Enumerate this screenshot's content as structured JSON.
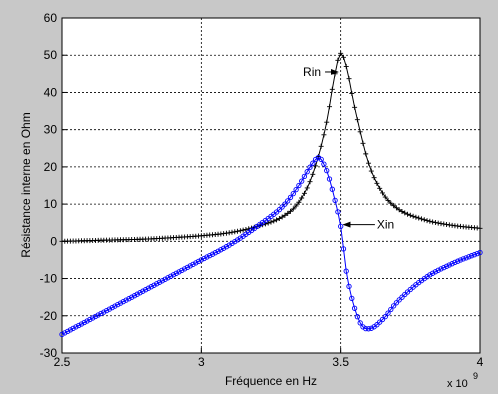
{
  "chart_data": {
    "type": "line",
    "title": "",
    "xlabel": "Fréquence en Hz",
    "ylabel": "Résistance interne en Ohm",
    "x_multiplier_label": "x 10",
    "x_multiplier_exp": "9",
    "xlim": [
      2.5,
      4.0
    ],
    "ylim": [
      -30,
      60
    ],
    "xticks": [
      2.5,
      3,
      3.5,
      4
    ],
    "xtick_labels": [
      "2.5",
      "3",
      "3.5",
      "4"
    ],
    "yticks": [
      -30,
      -20,
      -10,
      0,
      10,
      20,
      30,
      40,
      50,
      60
    ],
    "ytick_labels": [
      "-30",
      "-20",
      "-10",
      "0",
      "10",
      "20",
      "30",
      "40",
      "50",
      "60"
    ],
    "grid": true,
    "series": [
      {
        "name": "Rin",
        "color": "#000000",
        "marker": "plus",
        "x": [
          2.5,
          2.6,
          2.7,
          2.8,
          2.9,
          3.0,
          3.1,
          3.2,
          3.3,
          3.35,
          3.4,
          3.45,
          3.48,
          3.5,
          3.52,
          3.55,
          3.6,
          3.65,
          3.7,
          3.8,
          3.9,
          4.0
        ],
        "y": [
          0,
          0.2,
          0.4,
          0.6,
          1.0,
          1.5,
          2.3,
          4.0,
          7.0,
          10.5,
          18.0,
          32.0,
          45.0,
          50.5,
          47.0,
          36.0,
          21.0,
          13.0,
          9.0,
          5.8,
          4.3,
          3.5
        ]
      },
      {
        "name": "Xin",
        "color": "#0000ff",
        "marker": "circle",
        "x": [
          2.5,
          2.6,
          2.7,
          2.8,
          2.9,
          3.0,
          3.1,
          3.2,
          3.3,
          3.35,
          3.4,
          3.42,
          3.45,
          3.48,
          3.5,
          3.52,
          3.55,
          3.58,
          3.6,
          3.65,
          3.7,
          3.8,
          3.9,
          4.0
        ],
        "y": [
          -25,
          -21,
          -17,
          -13,
          -9,
          -5,
          -1,
          4,
          10,
          15,
          21,
          22.5,
          19,
          11,
          4,
          -8,
          -18,
          -23,
          -23.5,
          -21,
          -16.5,
          -10,
          -6,
          -3
        ]
      }
    ],
    "annotations": [
      {
        "text": "Rin",
        "x": 3.365,
        "y": 45.5,
        "arrow_to": [
          3.49,
          45.5
        ]
      },
      {
        "text": "Xin",
        "x": 3.63,
        "y": 4.5,
        "arrow_to": [
          3.51,
          4.5
        ]
      }
    ]
  }
}
